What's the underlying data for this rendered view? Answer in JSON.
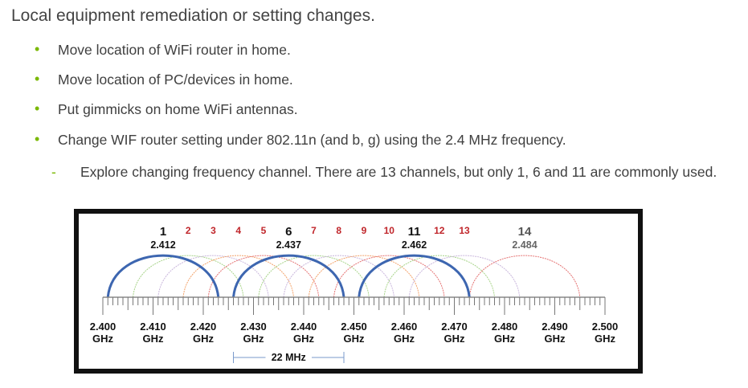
{
  "title": "Local equipment remediation or setting changes.",
  "bullets": [
    "Move location of WiFi router in home.",
    "Move location of PC/devices in home.",
    "Put gimmicks  on home  WiFi antennas.",
    "Change WIF router setting under 802.11n  (and b, g) using the 2.4 MHz frequency."
  ],
  "sub_bullet": "Explore changing frequency channel. There are 13 channels, but  only 1, 6 and 11 are commonly used.",
  "diagram": {
    "channels": [
      {
        "n": "1",
        "freq": "2.412",
        "center": 2412,
        "color": "#3d66b0",
        "main": true
      },
      {
        "n": "2",
        "center": 2417,
        "color": "#a8d48a"
      },
      {
        "n": "3",
        "center": 2422,
        "color": "#c9b6dc"
      },
      {
        "n": "4",
        "center": 2427,
        "color": "#f3a36b"
      },
      {
        "n": "5",
        "center": 2432,
        "color": "#e57373"
      },
      {
        "n": "6",
        "freq": "2.437",
        "center": 2437,
        "color": "#3d66b0",
        "main": true
      },
      {
        "n": "7",
        "center": 2442,
        "color": "#a8d48a"
      },
      {
        "n": "8",
        "center": 2447,
        "color": "#c9b6dc"
      },
      {
        "n": "9",
        "center": 2452,
        "color": "#f3a36b"
      },
      {
        "n": "10",
        "center": 2457,
        "color": "#e57373"
      },
      {
        "n": "11",
        "freq": "2.462",
        "center": 2462,
        "color": "#3d66b0",
        "main": true
      },
      {
        "n": "12",
        "center": 2467,
        "color": "#a8d48a"
      },
      {
        "n": "13",
        "center": 2472,
        "color": "#c9b6dc"
      },
      {
        "n": "14",
        "freq": "2.484",
        "center": 2484,
        "color": "#e57373",
        "main": false,
        "grey": true
      }
    ],
    "axis_labels": [
      "2.400",
      "2.410",
      "2.420",
      "2.430",
      "2.440",
      "2.450",
      "2.460",
      "2.470",
      "2.480",
      "2.490",
      "2.500"
    ],
    "unit": "GHz",
    "width_label": "22 MHz",
    "label_color": "#c0262b"
  }
}
